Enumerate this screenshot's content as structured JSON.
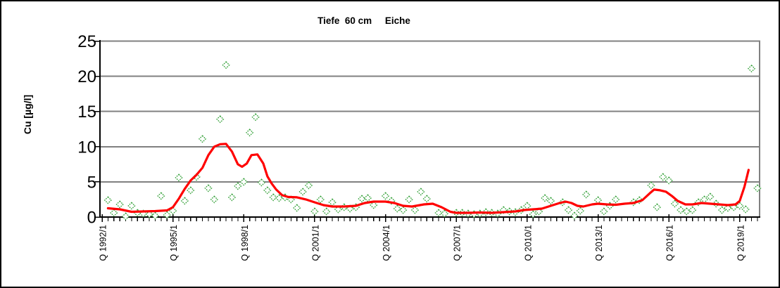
{
  "window": {
    "background": "#ffffff"
  },
  "chart_data": {
    "type": "scatter",
    "title": "Tiefe  60 cm     Eiche",
    "ylabel": "Cu [µg/l]",
    "xlabel": "",
    "ylim": [
      0,
      25
    ],
    "y_ticks": [
      0,
      5,
      10,
      15,
      20,
      25
    ],
    "grid": "horizontal",
    "legend": "none",
    "x_axis": {
      "unit": "quarter",
      "start": "Q 1992/1",
      "end": "Q 2019/4",
      "n_quarters": 112,
      "minor_tick_every": 1,
      "major_tick_every": 12,
      "major_tick_labels": [
        "Q 1992/1",
        "Q 1995/1",
        "Q 1998/1",
        "Q 2001/1",
        "Q 2004/1",
        "Q 2007/1",
        "Q 2010/1",
        "Q 2013/1",
        "Q 2016/1",
        "Q 2019/1"
      ]
    },
    "colors": {
      "grid": "#808080",
      "axis": "#000000",
      "plot_border_right": "#808080",
      "marker": "#3aa33e",
      "trend": "#ff0000"
    },
    "series": [
      {
        "type": "scatter",
        "marker": "hollow-diamond",
        "color": "#3aa33e",
        "values": [
          null,
          2.4,
          0.6,
          1.8,
          0.1,
          1.6,
          0.6,
          0.5,
          0.4,
          0.2,
          3.0,
          0.3,
          0.9,
          5.6,
          2.3,
          3.8,
          5.7,
          11.1,
          4.1,
          2.5,
          13.9,
          21.6,
          2.8,
          4.4,
          5.0,
          12.0,
          14.2,
          4.9,
          3.8,
          2.8,
          2.7,
          2.8,
          2.5,
          1.3,
          3.6,
          4.5,
          0.8,
          2.5,
          0.8,
          2.1,
          1.1,
          1.4,
          1.2,
          1.4,
          2.6,
          2.7,
          1.7,
          null,
          3.0,
          2.3,
          1.2,
          1.0,
          2.5,
          1.0,
          3.6,
          2.6,
          null,
          0.6,
          0.5,
          null,
          0.6,
          0.6,
          0.5,
          0.4,
          0.5,
          0.7,
          0.6,
          0.5,
          1.0,
          0.8,
          0.7,
          1.0,
          1.6,
          0.4,
          0.8,
          2.7,
          2.3,
          null,
          2.1,
          1.0,
          0.2,
          0.9,
          3.2,
          null,
          2.4,
          0.8,
          1.6,
          2.5,
          null,
          null,
          2.1,
          2.4,
          null,
          4.5,
          1.4,
          5.7,
          5.2,
          1.9,
          1.0,
          0.8,
          1.0,
          2.1,
          2.5,
          2.9,
          1.9,
          1.0,
          1.3,
          1.4,
          1.6,
          1.1,
          21.1,
          4.1
        ]
      },
      {
        "type": "line",
        "color": "#ff0000",
        "points": [
          [
            1,
            1.25
          ],
          [
            3,
            1.1
          ],
          [
            5,
            0.75
          ],
          [
            7,
            0.8
          ],
          [
            9,
            0.85
          ],
          [
            11,
            0.95
          ],
          [
            12,
            1.4
          ],
          [
            13,
            2.6
          ],
          [
            14,
            4.0
          ],
          [
            15,
            5.2
          ],
          [
            16,
            6.0
          ],
          [
            17,
            7.0
          ],
          [
            18,
            8.8
          ],
          [
            19,
            10.0
          ],
          [
            20,
            10.35
          ],
          [
            21,
            10.4
          ],
          [
            22,
            9.3
          ],
          [
            23,
            7.5
          ],
          [
            23.7,
            7.15
          ],
          [
            24.5,
            7.6
          ],
          [
            25.3,
            8.8
          ],
          [
            26.3,
            8.9
          ],
          [
            27.3,
            7.6
          ],
          [
            28,
            5.8
          ],
          [
            28.7,
            4.8
          ],
          [
            29.5,
            3.9
          ],
          [
            30.5,
            3.1
          ],
          [
            31.5,
            2.85
          ],
          [
            33,
            2.8
          ],
          [
            34.5,
            2.5
          ],
          [
            36,
            2.1
          ],
          [
            37.5,
            1.7
          ],
          [
            39,
            1.5
          ],
          [
            41,
            1.5
          ],
          [
            43,
            1.6
          ],
          [
            44.5,
            2.0
          ],
          [
            46,
            2.2
          ],
          [
            48,
            2.2
          ],
          [
            49.5,
            2.0
          ],
          [
            51,
            1.6
          ],
          [
            52.5,
            1.5
          ],
          [
            54.5,
            1.8
          ],
          [
            56,
            1.9
          ],
          [
            57.5,
            1.4
          ],
          [
            59,
            0.75
          ],
          [
            60,
            0.6
          ],
          [
            62,
            0.6
          ],
          [
            64,
            0.65
          ],
          [
            66,
            0.6
          ],
          [
            68,
            0.7
          ],
          [
            70,
            0.8
          ],
          [
            71.5,
            1.0
          ],
          [
            73,
            1.1
          ],
          [
            74.5,
            1.2
          ],
          [
            76,
            1.6
          ],
          [
            77.5,
            2.0
          ],
          [
            78.5,
            2.2
          ],
          [
            79.5,
            2.0
          ],
          [
            80.5,
            1.6
          ],
          [
            81.5,
            1.5
          ],
          [
            83,
            1.8
          ],
          [
            84,
            1.9
          ],
          [
            85.5,
            1.8
          ],
          [
            87,
            1.75
          ],
          [
            88.5,
            1.9
          ],
          [
            90,
            2.0
          ],
          [
            91.5,
            2.4
          ],
          [
            92.8,
            3.4
          ],
          [
            93.5,
            3.9
          ],
          [
            94.5,
            3.8
          ],
          [
            95.5,
            3.6
          ],
          [
            96.5,
            3.0
          ],
          [
            97.5,
            2.3
          ],
          [
            98.8,
            1.8
          ],
          [
            100,
            1.8
          ],
          [
            101.5,
            2.0
          ],
          [
            103,
            1.9
          ],
          [
            104.5,
            1.8
          ],
          [
            106,
            1.7
          ],
          [
            107.3,
            1.8
          ],
          [
            108,
            2.3
          ],
          [
            108.8,
            4.3
          ],
          [
            109.5,
            6.7
          ]
        ]
      }
    ]
  }
}
